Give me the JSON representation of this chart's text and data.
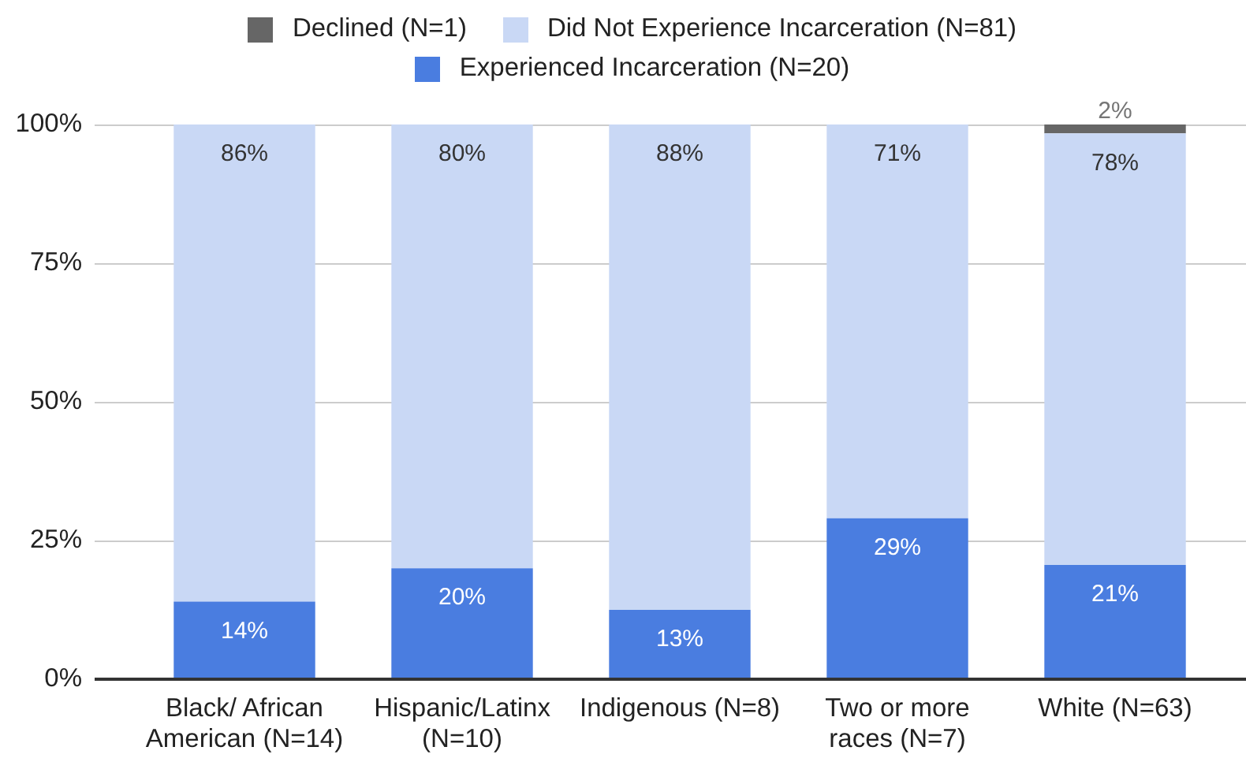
{
  "chart_data": {
    "type": "bar",
    "stacked": true,
    "categories": [
      "Black/ African American (N=14)",
      "Hispanic/Latinx (N=10)",
      "Indigenous (N=8)",
      "Two or more races (N=7)",
      "White (N=63)"
    ],
    "series": [
      {
        "name": "Experienced Incarceration (N=20)",
        "color": "#4a7de0",
        "values": [
          14,
          20,
          12.5,
          29,
          20.6
        ],
        "value_labels": [
          "14%",
          "20%",
          "13%",
          "29%",
          "21%"
        ]
      },
      {
        "name": "Did Not Experience Incarceration (N=81)",
        "color": "#c9d8f5",
        "values": [
          86,
          80,
          87.5,
          71,
          77.8
        ],
        "value_labels": [
          "86%",
          "80%",
          "88%",
          "71%",
          "78%"
        ]
      },
      {
        "name": "Declined (N=1)",
        "color": "#666666",
        "values": [
          null,
          null,
          null,
          null,
          1.6
        ],
        "value_labels": [
          null,
          null,
          null,
          null,
          "2%"
        ]
      }
    ],
    "ylim": [
      0,
      100
    ],
    "yticks": [
      {
        "value": 0,
        "label": "0%"
      },
      {
        "value": 25,
        "label": "25%"
      },
      {
        "value": 50,
        "label": "50%"
      },
      {
        "value": 75,
        "label": "75%"
      },
      {
        "value": 100,
        "label": "100%"
      }
    ],
    "grid": "y",
    "legend": "top"
  }
}
